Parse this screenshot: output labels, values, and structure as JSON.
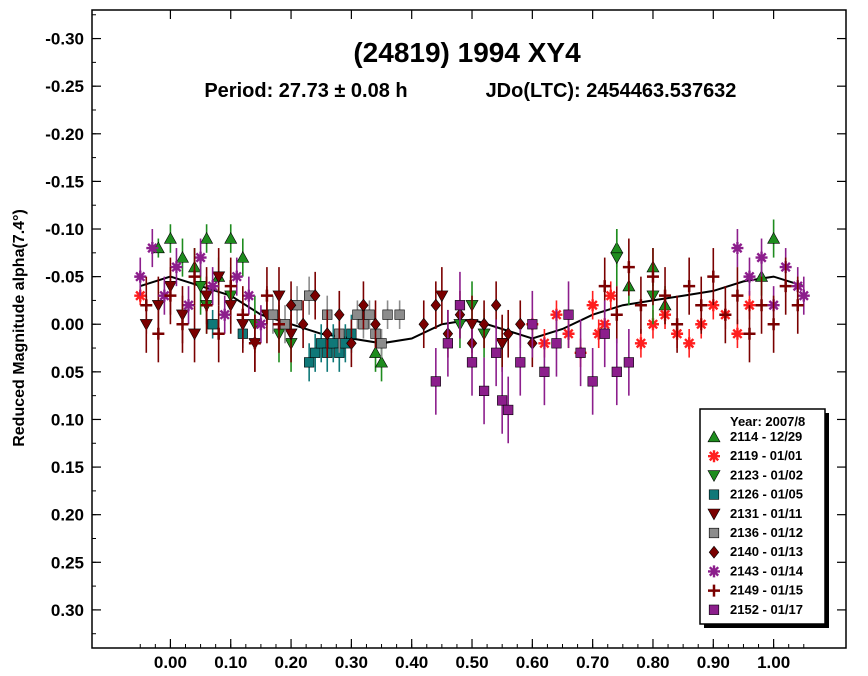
{
  "chart_data": {
    "type": "scatter",
    "title": "(24819) 1994 XY4",
    "subtitle_period": "Period: 27.73 ± 0.08 h",
    "subtitle_epoch": "JDo(LTC): 2454463.537632",
    "xlabel": "",
    "ylabel": "Reduced Magnitude alpha(7.4°)",
    "xlim": [
      -0.13,
      1.12
    ],
    "ylim": [
      -0.33,
      0.34
    ],
    "y_inverted": true,
    "x_ticks": [
      0.0,
      0.1,
      0.2,
      0.3,
      0.4,
      0.5,
      0.6,
      0.7,
      0.8,
      0.9,
      1.0
    ],
    "x_tick_labels": [
      "0.00",
      "0.10",
      "0.20",
      "0.30",
      "0.40",
      "0.50",
      "0.60",
      "0.70",
      "0.80",
      "0.90",
      "1.00"
    ],
    "y_ticks": [
      -0.3,
      -0.25,
      -0.2,
      -0.15,
      -0.1,
      -0.05,
      0.0,
      0.05,
      0.1,
      0.15,
      0.2,
      0.25,
      0.3
    ],
    "y_tick_labels": [
      "-0.30",
      "-0.25",
      "-0.20",
      "-0.15",
      "-0.10",
      "-0.05",
      "0.00",
      "0.05",
      "0.10",
      "0.15",
      "0.20",
      "0.25",
      "0.30"
    ],
    "grid": false,
    "legend_position": "bottom-right",
    "legend_title": "Year: 2007/8",
    "fit_curve": {
      "x": [
        -0.05,
        0.0,
        0.05,
        0.1,
        0.15,
        0.2,
        0.25,
        0.3,
        0.35,
        0.4,
        0.45,
        0.5,
        0.55,
        0.6,
        0.65,
        0.7,
        0.75,
        0.8,
        0.85,
        0.9,
        0.95,
        1.0,
        1.05
      ],
      "y": [
        -0.04,
        -0.05,
        -0.04,
        -0.03,
        -0.01,
        0.0,
        0.01,
        0.015,
        0.02,
        0.015,
        0.0,
        -0.005,
        0.005,
        0.015,
        0.005,
        -0.01,
        -0.02,
        -0.025,
        -0.03,
        -0.035,
        -0.045,
        -0.05,
        -0.04
      ],
      "color": "#000000"
    },
    "series": [
      {
        "name": "2114 - 12/29",
        "marker": "triangle-up",
        "color": "#1e8c1e",
        "x": [
          -0.02,
          0.0,
          0.02,
          0.04,
          0.06,
          0.08,
          0.1,
          0.12,
          0.34,
          0.35,
          0.74,
          0.76,
          0.8,
          0.82,
          0.98,
          1.0
        ],
        "y": [
          -0.08,
          -0.09,
          -0.07,
          -0.06,
          -0.09,
          -0.05,
          -0.09,
          -0.07,
          0.03,
          0.04,
          -0.08,
          -0.04,
          -0.06,
          -0.02,
          -0.05,
          -0.09
        ],
        "err": [
          0.01,
          0.015,
          0.02,
          0.02,
          0.015,
          0.02,
          0.015,
          0.02,
          0.02,
          0.02,
          0.02,
          0.02,
          0.02,
          0.02,
          0.02,
          0.02
        ]
      },
      {
        "name": "2119 - 01/01",
        "marker": "asterisk",
        "color": "#ff1e1e",
        "x": [
          -0.05,
          0.6,
          0.62,
          0.64,
          0.66,
          0.68,
          0.7,
          0.71,
          0.72,
          0.73,
          0.78,
          0.8,
          0.82,
          0.84,
          0.86,
          0.88,
          0.9,
          0.92,
          0.94,
          0.96
        ],
        "y": [
          -0.03,
          0.0,
          0.02,
          -0.01,
          0.01,
          0.03,
          -0.02,
          0.01,
          0.0,
          -0.03,
          0.02,
          0.0,
          -0.01,
          0.01,
          0.02,
          0.0,
          -0.02,
          -0.01,
          0.01,
          -0.02
        ],
        "err": [
          0.01,
          0.015,
          0.015,
          0.015,
          0.015,
          0.015,
          0.015,
          0.015,
          0.015,
          0.015,
          0.015,
          0.015,
          0.015,
          0.015,
          0.015,
          0.015,
          0.015,
          0.015,
          0.015,
          0.015
        ]
      },
      {
        "name": "2123 - 01/02",
        "marker": "triangle-down",
        "color": "#1e8c1e",
        "x": [
          0.05,
          0.06,
          0.1,
          0.14,
          0.18,
          0.2,
          0.48,
          0.5,
          0.52,
          0.55,
          0.74,
          0.8
        ],
        "y": [
          -0.04,
          -0.02,
          -0.03,
          0.0,
          0.01,
          0.02,
          0.0,
          -0.02,
          0.01,
          0.02,
          -0.07,
          -0.03
        ],
        "err": [
          0.03,
          0.03,
          0.03,
          0.03,
          0.03,
          0.03,
          0.025,
          0.025,
          0.025,
          0.025,
          0.03,
          0.03
        ]
      },
      {
        "name": "2126 - 01/05",
        "marker": "square",
        "color": "#0f7878",
        "x": [
          0.07,
          0.12,
          0.23,
          0.24,
          0.25,
          0.26,
          0.27,
          0.28,
          0.29,
          0.3
        ],
        "y": [
          0.0,
          0.01,
          0.04,
          0.03,
          0.02,
          0.03,
          0.02,
          0.03,
          0.02,
          0.01
        ],
        "err": [
          0.015,
          0.015,
          0.02,
          0.02,
          0.02,
          0.02,
          0.02,
          0.02,
          0.02,
          0.02
        ]
      },
      {
        "name": "2131 - 01/11",
        "marker": "triangle-down",
        "color": "#7a0000",
        "x": [
          -0.04,
          -0.02,
          0.0,
          0.02,
          0.04,
          0.06,
          0.08,
          0.1,
          0.12,
          0.14,
          0.16,
          0.18,
          0.2,
          0.45,
          0.5,
          0.55
        ],
        "y": [
          0.0,
          -0.02,
          -0.04,
          -0.01,
          0.01,
          -0.03,
          -0.05,
          -0.02,
          0.0,
          0.02,
          -0.01,
          -0.03,
          0.01,
          -0.03,
          0.0,
          0.02
        ],
        "err": [
          0.03,
          0.03,
          0.03,
          0.03,
          0.03,
          0.03,
          0.03,
          0.03,
          0.03,
          0.03,
          0.03,
          0.03,
          0.03,
          0.03,
          0.03,
          0.03
        ]
      },
      {
        "name": "2136 - 01/12",
        "marker": "square",
        "color": "#8c8c8c",
        "x": [
          0.17,
          0.19,
          0.21,
          0.23,
          0.26,
          0.28,
          0.31,
          0.32,
          0.33,
          0.34,
          0.35,
          0.36,
          0.38
        ],
        "y": [
          -0.01,
          0.0,
          -0.02,
          -0.03,
          -0.01,
          0.01,
          -0.01,
          0.0,
          -0.01,
          0.01,
          0.02,
          -0.01,
          -0.01
        ],
        "err": [
          0.02,
          0.02,
          0.02,
          0.02,
          0.02,
          0.02,
          0.015,
          0.015,
          0.015,
          0.015,
          0.015,
          0.015,
          0.015
        ]
      },
      {
        "name": "2140 - 01/13",
        "marker": "diamond",
        "color": "#7a0000",
        "x": [
          0.2,
          0.22,
          0.24,
          0.26,
          0.28,
          0.3,
          0.32,
          0.34,
          0.42,
          0.44,
          0.46,
          0.48,
          0.5,
          0.52,
          0.54,
          0.56,
          0.58,
          0.6
        ],
        "y": [
          -0.02,
          0.0,
          -0.03,
          0.01,
          -0.01,
          0.02,
          -0.02,
          0.0,
          0.0,
          -0.02,
          0.01,
          -0.01,
          0.02,
          0.0,
          -0.02,
          0.01,
          0.0,
          0.02
        ],
        "err": [
          0.025,
          0.025,
          0.025,
          0.025,
          0.025,
          0.025,
          0.025,
          0.025,
          0.025,
          0.025,
          0.025,
          0.025,
          0.025,
          0.025,
          0.025,
          0.025,
          0.025,
          0.025
        ]
      },
      {
        "name": "2143 - 01/14",
        "marker": "asterisk",
        "color": "#8c1e8c",
        "x": [
          -0.05,
          -0.03,
          -0.01,
          0.01,
          0.03,
          0.05,
          0.07,
          0.09,
          0.11,
          0.13,
          0.15,
          0.94,
          0.96,
          0.98,
          1.0,
          1.02,
          1.04,
          1.05
        ],
        "y": [
          -0.05,
          -0.08,
          -0.03,
          -0.06,
          -0.02,
          -0.07,
          -0.04,
          -0.01,
          -0.05,
          -0.03,
          0.0,
          -0.08,
          -0.05,
          -0.07,
          -0.02,
          -0.06,
          -0.04,
          -0.03
        ],
        "err": [
          0.02,
          0.02,
          0.02,
          0.02,
          0.02,
          0.02,
          0.02,
          0.02,
          0.02,
          0.02,
          0.02,
          0.02,
          0.02,
          0.02,
          0.02,
          0.02,
          0.02,
          0.02
        ]
      },
      {
        "name": "2149 - 01/15",
        "marker": "cross",
        "color": "#7a0000",
        "x": [
          -0.04,
          -0.02,
          0.0,
          0.02,
          0.04,
          0.06,
          0.08,
          0.1,
          0.12,
          0.14,
          0.16,
          0.18,
          0.72,
          0.74,
          0.76,
          0.78,
          0.8,
          0.82,
          0.84,
          0.86,
          0.88,
          0.9,
          0.92,
          0.94,
          0.96,
          0.98,
          1.0,
          1.02,
          1.04
        ],
        "y": [
          -0.02,
          0.01,
          -0.03,
          0.0,
          -0.05,
          -0.02,
          0.01,
          -0.04,
          -0.01,
          0.02,
          -0.03,
          0.0,
          -0.04,
          -0.01,
          -0.06,
          -0.02,
          -0.05,
          -0.03,
          0.0,
          -0.04,
          -0.02,
          -0.05,
          -0.01,
          -0.03,
          0.01,
          -0.02,
          0.0,
          -0.04,
          -0.02
        ],
        "err": [
          0.03,
          0.03,
          0.03,
          0.03,
          0.03,
          0.03,
          0.03,
          0.03,
          0.03,
          0.03,
          0.03,
          0.03,
          0.03,
          0.03,
          0.03,
          0.03,
          0.03,
          0.03,
          0.03,
          0.03,
          0.03,
          0.03,
          0.03,
          0.03,
          0.03,
          0.03,
          0.03,
          0.03,
          0.03
        ]
      },
      {
        "name": "2152 - 01/17",
        "marker": "square",
        "color": "#8c1e8c",
        "x": [
          0.44,
          0.46,
          0.48,
          0.5,
          0.52,
          0.54,
          0.55,
          0.56,
          0.58,
          0.6,
          0.62,
          0.64,
          0.66,
          0.68,
          0.7,
          0.72,
          0.74,
          0.76
        ],
        "y": [
          0.06,
          0.02,
          -0.02,
          0.04,
          0.07,
          0.03,
          0.08,
          0.09,
          0.04,
          0.0,
          0.05,
          0.02,
          -0.01,
          0.03,
          0.06,
          0.01,
          0.05,
          0.04
        ],
        "err": [
          0.035,
          0.035,
          0.035,
          0.035,
          0.035,
          0.035,
          0.035,
          0.035,
          0.035,
          0.035,
          0.035,
          0.035,
          0.035,
          0.035,
          0.035,
          0.035,
          0.035,
          0.035
        ]
      }
    ]
  }
}
